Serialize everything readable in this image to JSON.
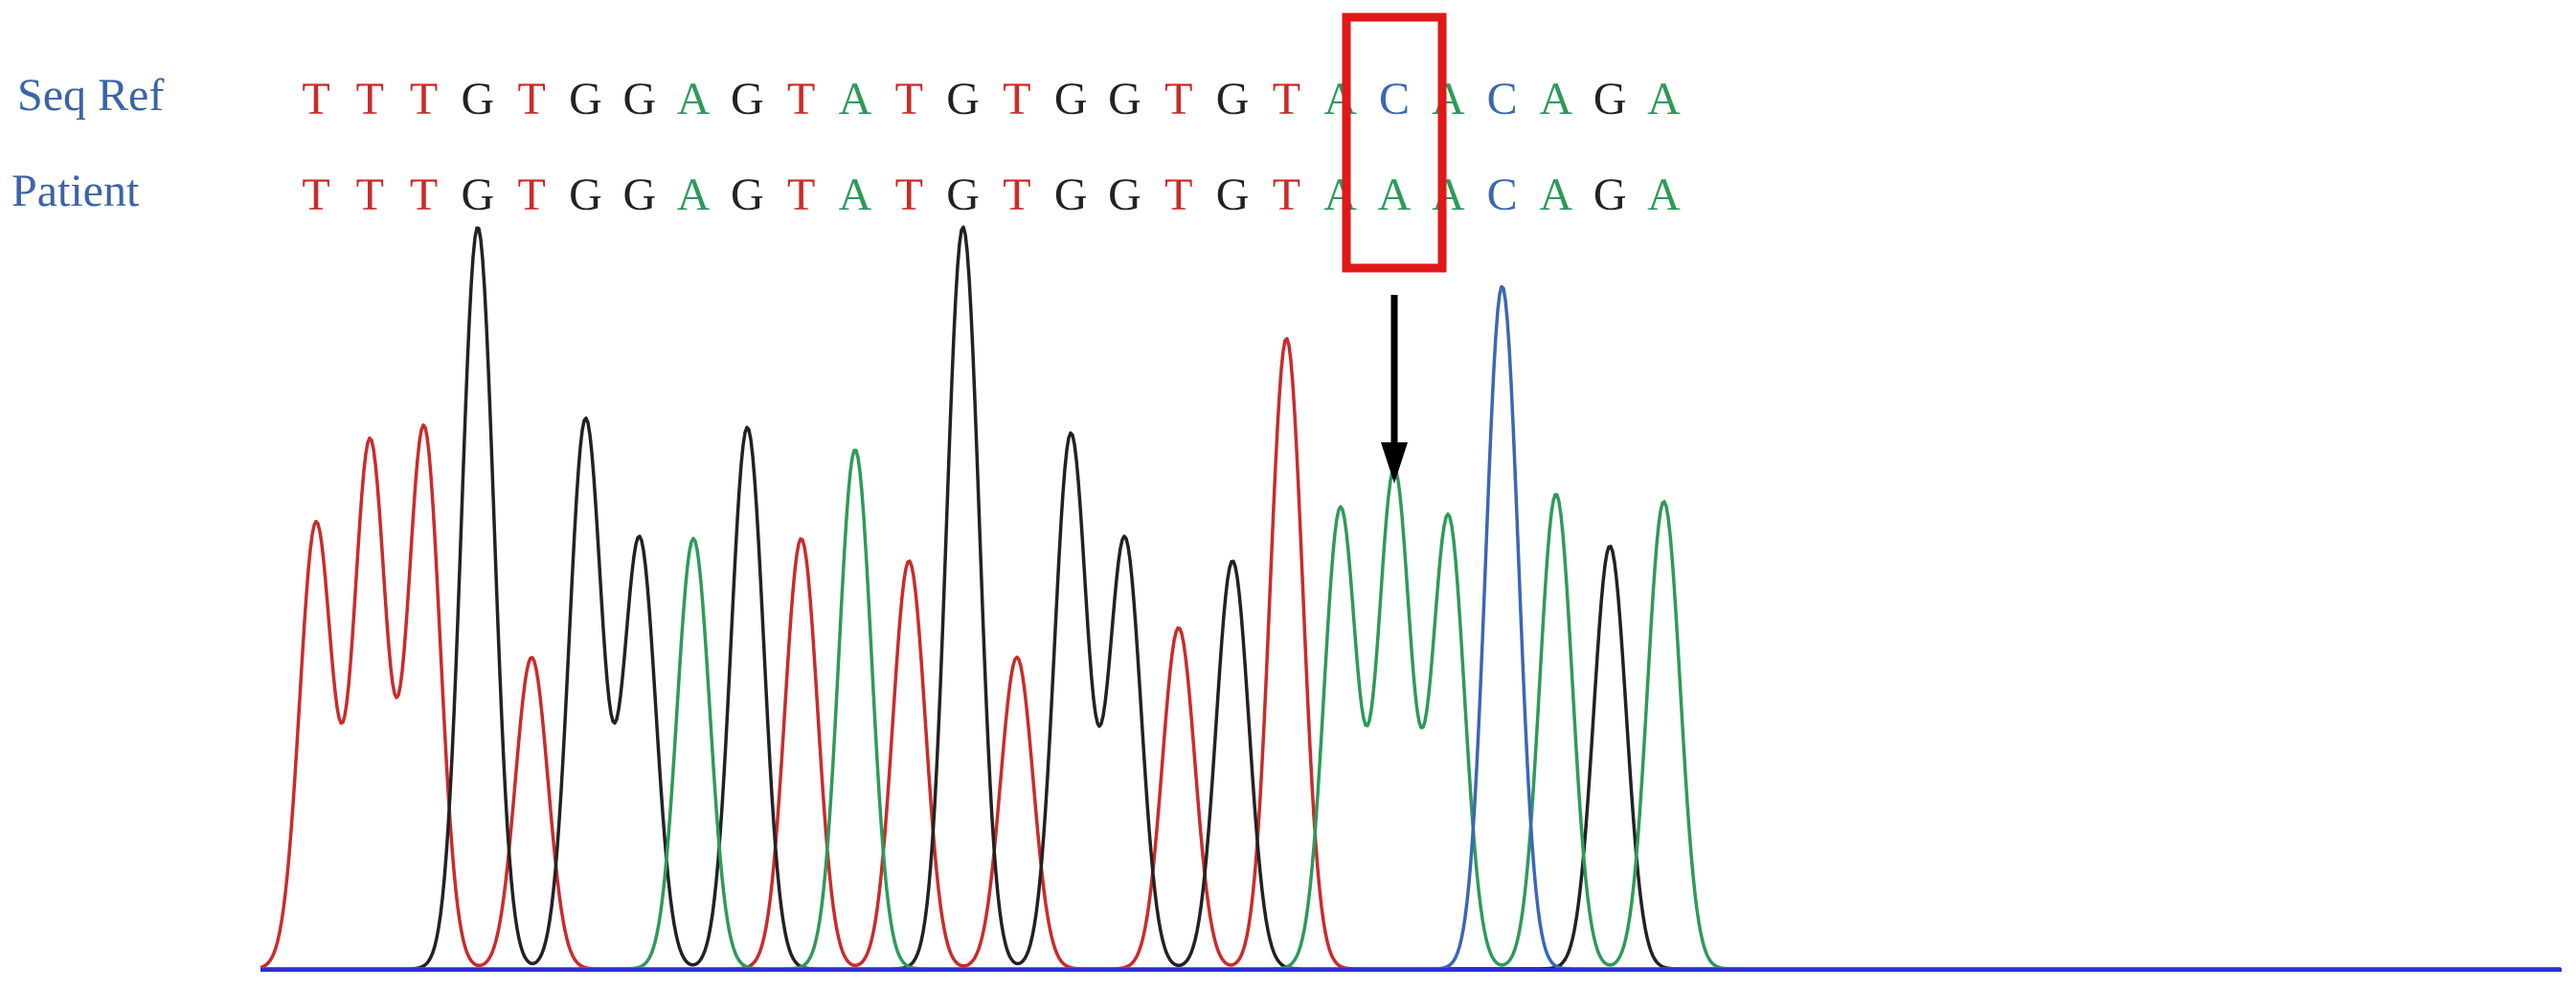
{
  "labels": {
    "reference": "Seq Ref",
    "patient": "Patient"
  },
  "sequences": {
    "reference": [
      "T",
      "T",
      "T",
      "G",
      "T",
      "G",
      "G",
      "A",
      "G",
      "T",
      "A",
      "T",
      "G",
      "T",
      "G",
      "G",
      "T",
      "G",
      "T",
      "A",
      "C",
      "A",
      "C",
      "A",
      "G",
      "A"
    ],
    "patient": [
      "T",
      "T",
      "T",
      "G",
      "T",
      "G",
      "G",
      "A",
      "G",
      "T",
      "A",
      "T",
      "G",
      "T",
      "G",
      "G",
      "T",
      "G",
      "T",
      "A",
      "A",
      "A",
      "C",
      "A",
      "G",
      "A"
    ]
  },
  "variant_index": 20,
  "colors": {
    "A": "#2e9a5a",
    "C": "#3a67b5",
    "G": "#222222",
    "T": "#cc2a2a",
    "highlight": "#e01818",
    "arrow": "#000000",
    "baseline": "#2d2dd6",
    "label": "#3b64a8"
  },
  "chromatogram": {
    "peaks": [
      {
        "base": "T",
        "height": 0.6
      },
      {
        "base": "T",
        "height": 0.71
      },
      {
        "base": "T",
        "height": 0.73
      },
      {
        "base": "G",
        "height": 1.0
      },
      {
        "base": "T",
        "height": 0.42
      },
      {
        "base": "G",
        "height": 0.74
      },
      {
        "base": "G",
        "height": 0.58
      },
      {
        "base": "A",
        "height": 0.58
      },
      {
        "base": "G",
        "height": 0.73
      },
      {
        "base": "T",
        "height": 0.58
      },
      {
        "base": "A",
        "height": 0.7
      },
      {
        "base": "T",
        "height": 0.55
      },
      {
        "base": "G",
        "height": 1.0
      },
      {
        "base": "T",
        "height": 0.42
      },
      {
        "base": "G",
        "height": 0.72
      },
      {
        "base": "G",
        "height": 0.58
      },
      {
        "base": "T",
        "height": 0.46
      },
      {
        "base": "G",
        "height": 0.55
      },
      {
        "base": "T",
        "height": 0.85
      },
      {
        "base": "A",
        "height": 0.62
      },
      {
        "base": "A",
        "height": 0.67
      },
      {
        "base": "A",
        "height": 0.61
      },
      {
        "base": "C",
        "height": 0.92
      },
      {
        "base": "A",
        "height": 0.64
      },
      {
        "base": "G",
        "height": 0.57
      },
      {
        "base": "A",
        "height": 0.63
      }
    ]
  }
}
